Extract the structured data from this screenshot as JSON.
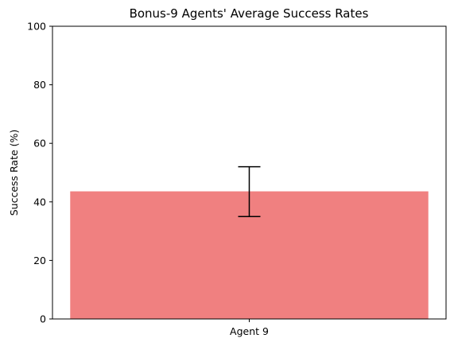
{
  "chart_data": {
    "type": "bar",
    "title": "Bonus-9 Agents' Average Success Rates",
    "xlabel": "",
    "ylabel": "Success Rate (%)",
    "categories": [
      "Agent 9"
    ],
    "values": [
      43.6
    ],
    "error_bars": [
      {
        "low": 35.0,
        "high": 52.0
      }
    ],
    "ylim": [
      0,
      100
    ],
    "yticks": [
      "0",
      "20",
      "40",
      "60",
      "80",
      "100"
    ],
    "bar_color": "#f08080",
    "grid": false,
    "legend": "none"
  }
}
